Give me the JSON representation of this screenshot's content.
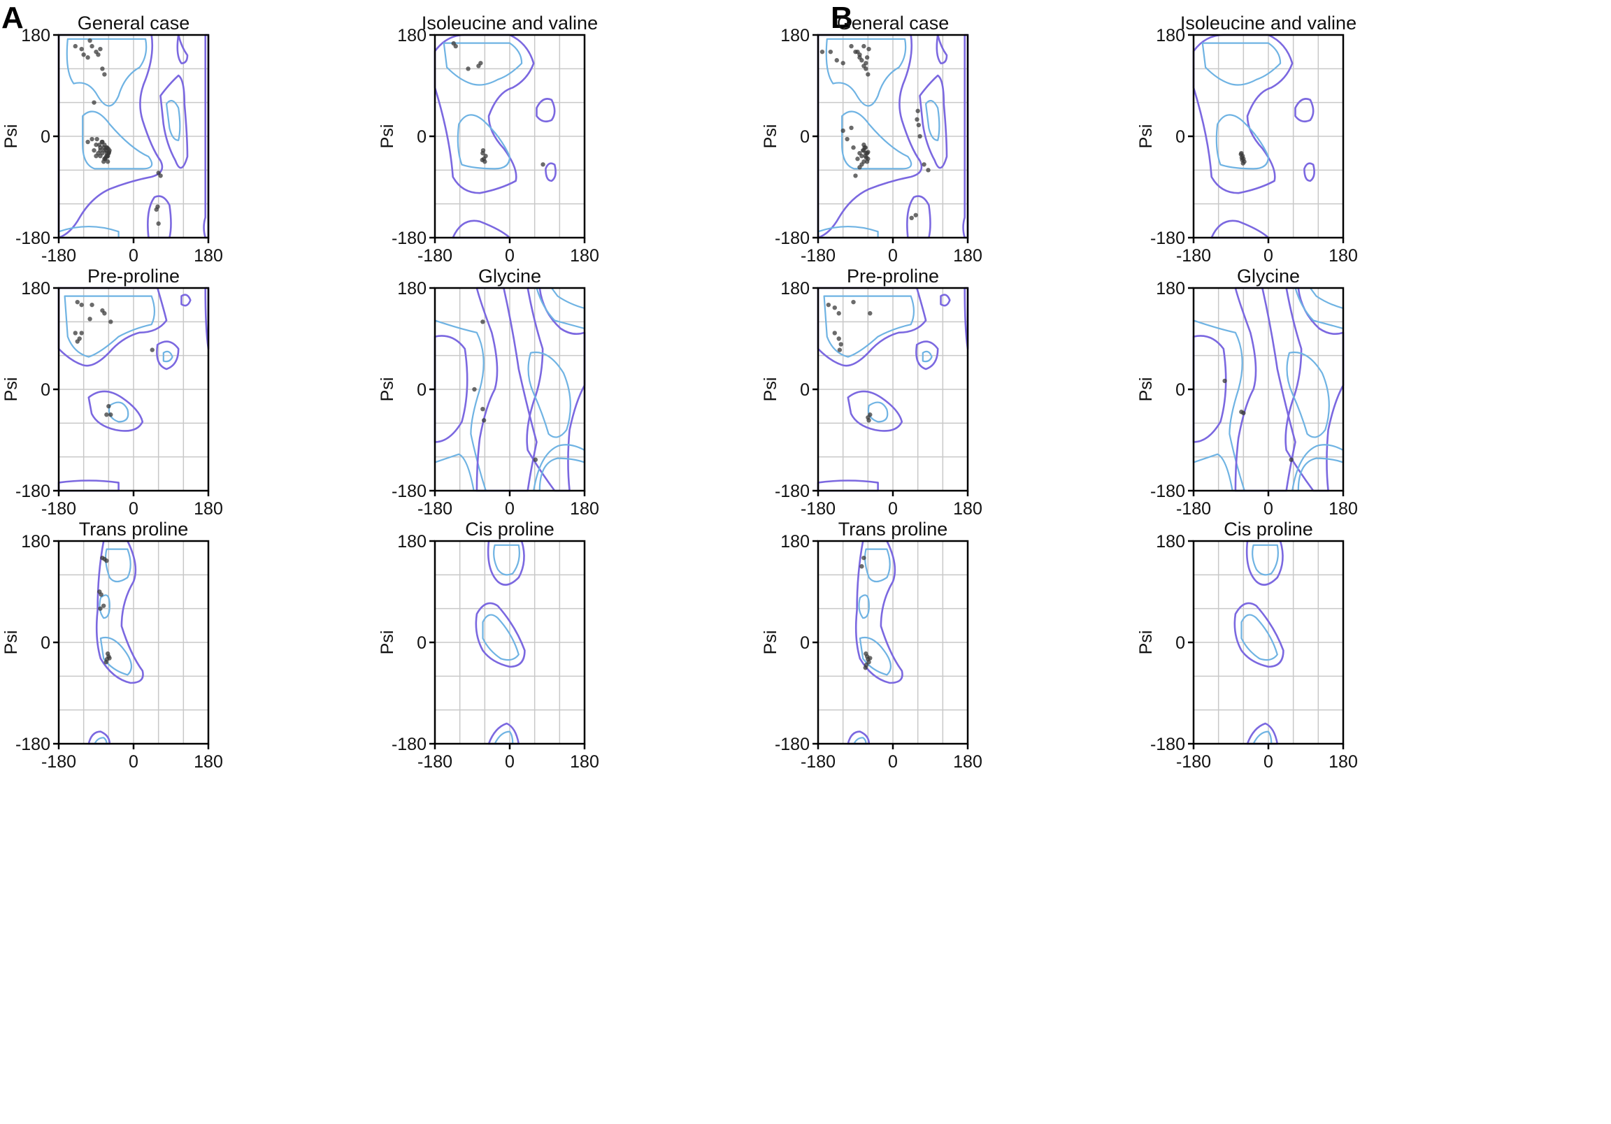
{
  "figure": {
    "panels": [
      {
        "letter": "A"
      },
      {
        "letter": "B"
      }
    ],
    "colors": {
      "outer_contour": "#7B68E0",
      "inner_contour": "#6FB3E3",
      "grid": "#c8c8c8",
      "point": "#3a3a3a"
    }
  },
  "chart_data": [
    {
      "panel": "A",
      "type": "scatter",
      "title": "General case",
      "ylabel": "Psi",
      "xlim": [
        -180,
        180
      ],
      "ylim": [
        -180,
        180
      ],
      "xticks": [
        -180,
        0,
        180
      ],
      "yticks": [
        -180,
        0,
        180
      ],
      "grid": true,
      "x": [
        -140,
        -125,
        -120,
        -110,
        -105,
        -100,
        -90,
        -85,
        -80,
        -75,
        -70,
        -95,
        -88,
        -82,
        -76,
        -72,
        -80,
        -90,
        -110,
        -100,
        -95,
        -90,
        -85,
        -80,
        -75,
        -70,
        -65,
        -60,
        -70,
        -65,
        -62,
        -68,
        -72,
        -60,
        -58,
        -66,
        -64,
        -63,
        -67,
        -61,
        -59,
        -70,
        -75,
        -80,
        -62,
        -64,
        60,
        65,
        58,
        55,
        60
      ],
      "y": [
        160,
        155,
        145,
        140,
        170,
        160,
        150,
        145,
        155,
        120,
        110,
        60,
        -5,
        -15,
        -10,
        -20,
        -25,
        -15,
        -10,
        -5,
        -25,
        -35,
        -30,
        -20,
        -30,
        -40,
        -35,
        -30,
        -25,
        -20,
        -35,
        -40,
        -45,
        -30,
        -25,
        -25,
        -30,
        -35,
        -38,
        -22,
        -28,
        -15,
        -10,
        -35,
        -45,
        -20,
        -65,
        -70,
        -125,
        -130,
        -155
      ]
    },
    {
      "panel": "A",
      "type": "scatter",
      "title": "Isoleucine and valine",
      "ylabel": "Psi",
      "xlim": [
        -180,
        180
      ],
      "ylim": [
        -180,
        180
      ],
      "xticks": [
        -180,
        0,
        180
      ],
      "yticks": [
        -180,
        0,
        180
      ],
      "grid": true,
      "x": [
        -135,
        -130,
        -100,
        -75,
        -70,
        -65,
        -62,
        -60,
        -58,
        -64,
        -66,
        80
      ],
      "y": [
        165,
        160,
        120,
        125,
        130,
        -30,
        -40,
        -45,
        -35,
        -25,
        -42,
        -50
      ]
    },
    {
      "panel": "A",
      "type": "scatter",
      "title": "Pre-proline",
      "ylabel": "Psi",
      "xlim": [
        -180,
        180
      ],
      "ylim": [
        -180,
        180
      ],
      "xticks": [
        -180,
        0,
        180
      ],
      "yticks": [
        -180,
        0,
        180
      ],
      "grid": true,
      "x": [
        -135,
        -125,
        -100,
        -75,
        -70,
        -55,
        -140,
        -130,
        -135,
        -125,
        -105,
        -60,
        -65,
        -55,
        45
      ],
      "y": [
        155,
        150,
        150,
        140,
        135,
        120,
        100,
        90,
        85,
        100,
        125,
        -30,
        -45,
        -45,
        70
      ]
    },
    {
      "panel": "A",
      "type": "scatter",
      "title": "Glycine",
      "ylabel": "Psi",
      "xlim": [
        -180,
        180
      ],
      "ylim": [
        -180,
        180
      ],
      "xticks": [
        -180,
        0,
        180
      ],
      "yticks": [
        -180,
        0,
        180
      ],
      "grid": true,
      "x": [
        -65,
        -85,
        -65,
        -62,
        62
      ],
      "y": [
        120,
        0,
        -35,
        -55,
        -125
      ]
    },
    {
      "panel": "A",
      "type": "scatter",
      "title": "Trans proline",
      "ylabel": "Psi",
      "xlim": [
        -180,
        180
      ],
      "ylim": [
        -180,
        180
      ],
      "xticks": [
        -180,
        0,
        180
      ],
      "yticks": [
        -180,
        0,
        180
      ],
      "grid": true,
      "x": [
        -75,
        -70,
        -65,
        -82,
        -78,
        -72,
        -80,
        -62,
        -60,
        -64,
        -66,
        -58
      ],
      "y": [
        150,
        148,
        145,
        90,
        85,
        65,
        60,
        -20,
        -25,
        -30,
        -35,
        -28
      ]
    },
    {
      "panel": "A",
      "type": "scatter",
      "title": "Cis proline",
      "ylabel": "Psi",
      "xlim": [
        -180,
        180
      ],
      "ylim": [
        -180,
        180
      ],
      "xticks": [
        -180,
        0,
        180
      ],
      "yticks": [
        -180,
        0,
        180
      ],
      "grid": true,
      "x": [],
      "y": []
    },
    {
      "panel": "B",
      "type": "scatter",
      "title": "General case",
      "ylabel": "Psi",
      "xlim": [
        -180,
        180
      ],
      "ylim": [
        -180,
        180
      ],
      "xticks": [
        -180,
        0,
        180
      ],
      "yticks": [
        -180,
        0,
        180
      ],
      "grid": true,
      "x": [
        -170,
        -150,
        -135,
        -120,
        -100,
        -90,
        -80,
        -75,
        -70,
        -65,
        -60,
        -85,
        -80,
        -70,
        -65,
        -62,
        -58,
        -110,
        -120,
        -100,
        -95,
        -80,
        -75,
        -70,
        -65,
        -60,
        -68,
        -72,
        -66,
        -64,
        -62,
        -60,
        -70,
        -75,
        -80,
        -85,
        -90,
        -62,
        -66,
        -70,
        60,
        58,
        62,
        65,
        75,
        85,
        55,
        45
      ],
      "y": [
        150,
        150,
        135,
        130,
        160,
        150,
        140,
        135,
        125,
        120,
        110,
        150,
        145,
        160,
        130,
        140,
        155,
        -5,
        10,
        15,
        -20,
        -30,
        -35,
        -25,
        -30,
        -40,
        -20,
        -25,
        -35,
        -38,
        -30,
        -28,
        -45,
        -50,
        -55,
        -40,
        -70,
        -45,
        -20,
        -15,
        45,
        30,
        20,
        0,
        -50,
        -60,
        -140,
        -145
      ]
    },
    {
      "panel": "B",
      "type": "scatter",
      "title": "Isoleucine and valine",
      "ylabel": "Psi",
      "xlim": [
        -180,
        180
      ],
      "ylim": [
        -180,
        180
      ],
      "xticks": [
        -180,
        0,
        180
      ],
      "yticks": [
        -180,
        0,
        180
      ],
      "grid": true,
      "x": [
        -65,
        -62,
        -60,
        -58,
        -64,
        -66,
        -61,
        -63
      ],
      "y": [
        -30,
        -35,
        -40,
        -45,
        -38,
        -32,
        -48,
        -42
      ]
    },
    {
      "panel": "B",
      "type": "scatter",
      "title": "Pre-proline",
      "ylabel": "Psi",
      "xlim": [
        -180,
        180
      ],
      "ylim": [
        -180,
        180
      ],
      "xticks": [
        -180,
        0,
        180
      ],
      "yticks": [
        -180,
        0,
        180
      ],
      "grid": true,
      "x": [
        -155,
        -140,
        -130,
        -95,
        -55,
        -140,
        -130,
        -125,
        -128,
        -60,
        -55,
        -58
      ],
      "y": [
        150,
        145,
        135,
        155,
        135,
        100,
        90,
        80,
        70,
        -50,
        -45,
        -55
      ]
    },
    {
      "panel": "B",
      "type": "scatter",
      "title": "Glycine",
      "ylabel": "Psi",
      "xlim": [
        -180,
        180
      ],
      "ylim": [
        -180,
        180
      ],
      "xticks": [
        -180,
        0,
        180
      ],
      "yticks": [
        -180,
        0,
        180
      ],
      "grid": true,
      "x": [
        -105,
        -65,
        -60,
        55
      ],
      "y": [
        15,
        -40,
        -42,
        -125
      ]
    },
    {
      "panel": "B",
      "type": "scatter",
      "title": "Trans proline",
      "ylabel": "Psi",
      "xlim": [
        -180,
        180
      ],
      "ylim": [
        -180,
        180
      ],
      "xticks": [
        -180,
        0,
        180
      ],
      "yticks": [
        -180,
        0,
        180
      ],
      "grid": true,
      "x": [
        -70,
        -75,
        -65,
        -62,
        -60,
        -58,
        -55,
        -64,
        -66
      ],
      "y": [
        150,
        135,
        -20,
        -25,
        -30,
        -35,
        -28,
        -40,
        -45
      ]
    },
    {
      "panel": "B",
      "type": "scatter",
      "title": "Cis proline",
      "ylabel": "Psi",
      "xlim": [
        -180,
        180
      ],
      "ylim": [
        -180,
        180
      ],
      "xticks": [
        -180,
        0,
        180
      ],
      "yticks": [
        -180,
        0,
        180
      ],
      "grid": true,
      "x": [],
      "y": []
    }
  ]
}
